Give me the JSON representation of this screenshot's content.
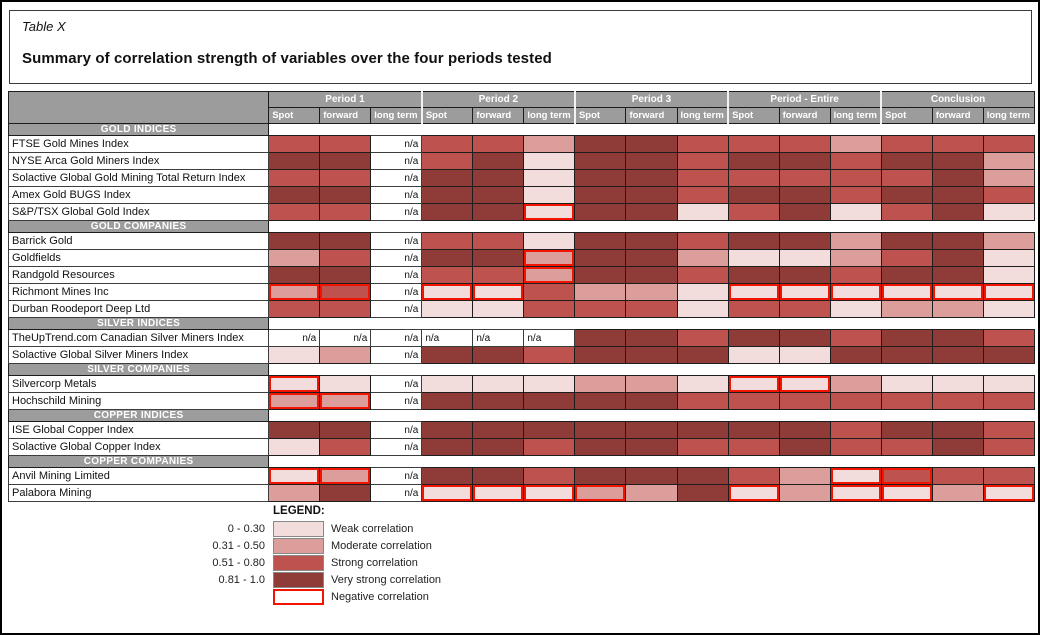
{
  "caption": {
    "label": "Table X",
    "title": "Summary of correlation strength of variables over the four periods tested"
  },
  "table": {
    "period_groups": [
      "Period 1",
      "Period 2",
      "Period 3",
      "Period - Entire",
      "Conclusion"
    ],
    "sub_columns": [
      "Spot",
      "forward",
      "long term"
    ],
    "na_label": "n/a",
    "cell_code_legend": {
      "W": "weak correlation (0 - 0.30)",
      "M": "moderate correlation (0.31 - 0.50)",
      "S": "strong correlation (0.51 - 0.80)",
      "V": "very strong correlation (0.81 - 1.0)",
      "na": "not applicable",
      "!": "negative correlation (red border)"
    },
    "sections": [
      {
        "header": "GOLD INDICES",
        "rows": [
          {
            "label": "FTSE Gold Mines Index",
            "cells": [
              "S",
              "S",
              "na",
              "S",
              "S",
              "M",
              "V",
              "V",
              "S",
              "S",
              "S",
              "M",
              "S",
              "S",
              "S"
            ]
          },
          {
            "label": "NYSE Arca Gold Miners Index",
            "cells": [
              "V",
              "V",
              "na",
              "S",
              "V",
              "W",
              "V",
              "V",
              "S",
              "V",
              "V",
              "S",
              "V",
              "V",
              "M"
            ]
          },
          {
            "label": "Solactive Global Gold Mining Total Return Index",
            "cells": [
              "S",
              "S",
              "na",
              "V",
              "V",
              "W",
              "V",
              "V",
              "S",
              "S",
              "S",
              "S",
              "S",
              "V",
              "M"
            ]
          },
          {
            "label": "Amex Gold BUGS Index",
            "cells": [
              "V",
              "V",
              "na",
              "V",
              "V",
              "W",
              "V",
              "V",
              "S",
              "V",
              "V",
              "S",
              "V",
              "V",
              "S"
            ]
          },
          {
            "label": "S&P/TSX Global Gold Index",
            "cells": [
              "S",
              "S",
              "na",
              "V",
              "V",
              "W!",
              "V",
              "V",
              "W",
              "S",
              "V",
              "W",
              "S",
              "V",
              "W"
            ]
          }
        ]
      },
      {
        "header": "GOLD COMPANIES",
        "rows": [
          {
            "label": "Barrick Gold",
            "cells": [
              "V",
              "V",
              "na",
              "S",
              "S",
              "W",
              "V",
              "V",
              "S",
              "V",
              "V",
              "M",
              "V",
              "V",
              "M"
            ]
          },
          {
            "label": "Goldfields",
            "cells": [
              "M",
              "S",
              "na",
              "V",
              "V",
              "M!",
              "V",
              "V",
              "M",
              "W",
              "W",
              "M",
              "S",
              "V",
              "W"
            ]
          },
          {
            "label": "Randgold Resources",
            "cells": [
              "V",
              "V",
              "na",
              "S",
              "S",
              "M!",
              "V",
              "V",
              "S",
              "V",
              "V",
              "S",
              "V",
              "V",
              "W"
            ]
          },
          {
            "label": "Richmont Mines Inc",
            "cells": [
              "M!",
              "S!",
              "na",
              "W!",
              "W!",
              "S",
              "M",
              "M",
              "W",
              "W!",
              "W!",
              "W!",
              "W!",
              "W!",
              "W!"
            ]
          },
          {
            "label": "Durban Roodeport Deep Ltd",
            "cells": [
              "S",
              "S",
              "na",
              "W",
              "W",
              "S",
              "S",
              "S",
              "W",
              "S",
              "S",
              "W",
              "M",
              "M",
              "W"
            ]
          }
        ]
      },
      {
        "header": "SILVER INDICES",
        "rows": [
          {
            "label": "TheUpTrend.com Canadian Silver Miners Index",
            "cells": [
              "na",
              "na",
              "na",
              "naL",
              "naL",
              "naL",
              "V",
              "V",
              "S",
              "V",
              "V",
              "S",
              "V",
              "V",
              "S"
            ]
          },
          {
            "label": "Solactive Global Silver Miners Index",
            "cells": [
              "W",
              "M",
              "na",
              "V",
              "V",
              "S",
              "V",
              "V",
              "V",
              "W",
              "W",
              "V",
              "V",
              "V",
              "V"
            ]
          }
        ]
      },
      {
        "header": "SILVER COMPANIES",
        "rows": [
          {
            "label": "Silvercorp Metals",
            "cells": [
              "W!",
              "W",
              "na",
              "W",
              "W",
              "W",
              "M",
              "M",
              "W",
              "W!",
              "W!",
              "M",
              "W",
              "W",
              "W"
            ]
          },
          {
            "label": "Hochschild Mining",
            "cells": [
              "M!",
              "M!",
              "na",
              "V",
              "V",
              "V",
              "V",
              "V",
              "S",
              "S",
              "S",
              "S",
              "S",
              "S",
              "S"
            ]
          }
        ]
      },
      {
        "header": "COPPER INDICES",
        "rows": [
          {
            "label": "ISE Global Copper Index",
            "cells": [
              "V",
              "V",
              "na",
              "V",
              "V",
              "V",
              "V",
              "V",
              "V",
              "V",
              "V",
              "S",
              "V",
              "V",
              "S"
            ]
          },
          {
            "label": "Solactive Global Copper Index",
            "cells": [
              "W",
              "S",
              "na",
              "V",
              "V",
              "S",
              "V",
              "V",
              "S",
              "S",
              "V",
              "S",
              "S",
              "V",
              "S"
            ]
          }
        ]
      },
      {
        "header": "COPPER COMPANIES",
        "rows": [
          {
            "label": "Anvil Mining Limited",
            "cells": [
              "W!",
              "M!",
              "na",
              "V",
              "V",
              "S",
              "V",
              "V",
              "V",
              "S",
              "M",
              "W!",
              "S!",
              "S",
              "S"
            ]
          },
          {
            "label": "Palabora Mining",
            "cells": [
              "M",
              "V",
              "na",
              "W!",
              "W!",
              "W!",
              "M!",
              "M",
              "V",
              "W!",
              "M",
              "W!",
              "W!",
              "M",
              "W!"
            ]
          }
        ]
      }
    ]
  },
  "legend": {
    "title": "LEGEND:",
    "entries": [
      {
        "range": "0 - 0.30",
        "level": "weak",
        "label": "Weak correlation"
      },
      {
        "range": "0.31 - 0.50",
        "level": "moderate",
        "label": "Moderate correlation"
      },
      {
        "range": "0.51 - 0.80",
        "level": "strong",
        "label": "Strong correlation"
      },
      {
        "range": "0.81 - 1.0",
        "level": "very_strong",
        "label": "Very strong correlation"
      },
      {
        "range": "",
        "level": "negative",
        "label": "Negative correlation"
      }
    ]
  },
  "colors": {
    "weak": "#f2dddc",
    "moderate": "#db9e9b",
    "strong": "#bd524e",
    "very_strong": "#8f3b38",
    "negative_border": "#f31400",
    "header_bg": "#9c9c9c",
    "header_text": "#ffffff"
  }
}
